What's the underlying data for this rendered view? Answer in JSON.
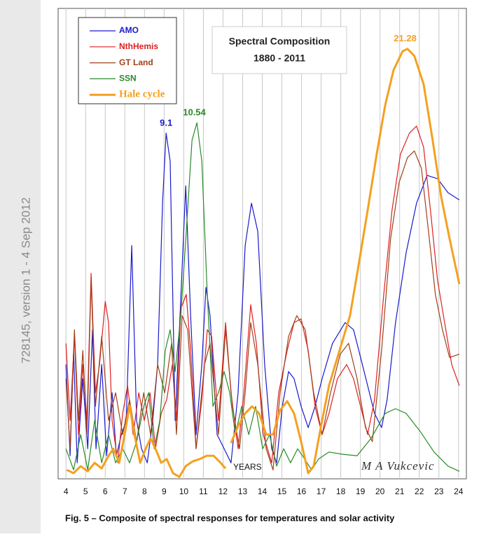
{
  "side_note": "728145, version 1 - 4 Sep 2012",
  "caption": "Fig. 5 – Composite of spectral responses for temperatures and solar activity",
  "chart_data": {
    "type": "line",
    "title": "Spectral Composition",
    "subtitle": "1880 - 2011",
    "annotations": [
      "YEARS",
      "M A Vukcevic"
    ],
    "xlim": [
      3.6,
      24.4
    ],
    "xticks": [
      4,
      5,
      6,
      7,
      8,
      9,
      10,
      11,
      12,
      13,
      14,
      15,
      16,
      17,
      18,
      19,
      20,
      21,
      22,
      23,
      24
    ],
    "ylim": [
      0,
      100
    ],
    "grid": true,
    "legend": "upper left",
    "series": [
      {
        "name": "AMO",
        "color": "#1a1acc",
        "peak": 9.1,
        "x": [
          4.0,
          4.21,
          4.39,
          4.57,
          4.86,
          5.11,
          5.35,
          5.53,
          5.82,
          6.07,
          6.35,
          6.57,
          6.82,
          7.07,
          7.35,
          7.6,
          7.85,
          8.14,
          8.42,
          8.67,
          8.92,
          9.1,
          9.31,
          9.56,
          9.81,
          10.1,
          10.35,
          10.63,
          10.92,
          11.13,
          11.34,
          11.7,
          12.06,
          12.41,
          12.77,
          13.13,
          13.45,
          13.77,
          14.12,
          14.48,
          14.73,
          15.02,
          15.34,
          15.62,
          15.98,
          16.34,
          16.69,
          17.05,
          17.58,
          18.22,
          18.65,
          19.01,
          19.37,
          19.72,
          20.08,
          20.36,
          20.79,
          21.33,
          21.86,
          22.4,
          22.93,
          23.47,
          24.04
        ],
        "values": [
          24.3,
          4.9,
          27.3,
          3.4,
          21.3,
          6.4,
          31.7,
          6.4,
          24.3,
          4.9,
          18.3,
          4.9,
          9.4,
          12.4,
          49.6,
          12.4,
          6.4,
          3.4,
          12.4,
          24.3,
          58.6,
          73.5,
          67.5,
          12.4,
          34.7,
          62.3,
          34.7,
          9.4,
          24.3,
          40.7,
          34.7,
          9.4,
          6.4,
          3.4,
          18.3,
          49.6,
          58.6,
          52.6,
          24.3,
          6.4,
          3.4,
          15.4,
          22.8,
          21.3,
          15.4,
          10.9,
          15.4,
          21.3,
          28.8,
          33.2,
          31.7,
          25.8,
          19.8,
          13.9,
          10.9,
          16.8,
          33.2,
          48.1,
          58.6,
          64.5,
          63.8,
          60.8,
          59.3
        ]
      },
      {
        "name": "NthHemis",
        "color": "#dd2020",
        "x": [
          4.0,
          4.21,
          4.43,
          4.64,
          4.86,
          5.07,
          5.28,
          5.5,
          5.71,
          6.0,
          6.17,
          6.35,
          6.64,
          6.89,
          7.14,
          7.42,
          7.71,
          7.99,
          8.28,
          8.56,
          8.85,
          9.13,
          9.42,
          9.63,
          9.85,
          10.13,
          10.35,
          10.63,
          10.92,
          11.2,
          11.42,
          11.77,
          12.13,
          12.41,
          12.77,
          13.06,
          13.41,
          13.7,
          14.05,
          14.48,
          14.84,
          15.27,
          15.62,
          15.98,
          16.34,
          16.69,
          17.05,
          17.4,
          17.83,
          18.3,
          18.65,
          19.01,
          19.37,
          19.72,
          20.19,
          20.61,
          21.04,
          21.5,
          21.86,
          22.22,
          22.57,
          22.93,
          23.29,
          23.65,
          24.04
        ],
        "values": [
          28.8,
          12.4,
          30.3,
          9.4,
          24.3,
          12.4,
          43.7,
          18.3,
          24.3,
          37.7,
          33.2,
          12.4,
          3.4,
          13.9,
          19.8,
          9.4,
          18.3,
          12.4,
          18.3,
          6.4,
          13.9,
          16.8,
          24.3,
          12.4,
          36.2,
          39.2,
          27.3,
          6.4,
          16.8,
          31.7,
          30.3,
          12.4,
          33.2,
          18.3,
          6.4,
          18.3,
          37.0,
          28.8,
          9.4,
          3.4,
          18.3,
          27.3,
          33.2,
          34.0,
          27.3,
          15.4,
          9.4,
          13.9,
          21.3,
          24.3,
          21.3,
          15.4,
          9.4,
          16.8,
          39.2,
          57.1,
          69.0,
          73.5,
          75.0,
          70.5,
          57.1,
          42.2,
          33.2,
          24.3,
          19.8
        ]
      },
      {
        "name": "GT Land",
        "color": "#a0401a",
        "x": [
          4.0,
          4.21,
          4.43,
          4.64,
          4.86,
          5.07,
          5.28,
          5.5,
          5.82,
          6.17,
          6.53,
          6.89,
          7.24,
          7.6,
          7.96,
          8.31,
          8.67,
          9.03,
          9.38,
          9.63,
          9.92,
          10.2,
          10.63,
          11.06,
          11.34,
          11.77,
          12.13,
          12.48,
          12.84,
          13.13,
          13.41,
          13.77,
          14.2,
          14.55,
          14.91,
          15.34,
          15.76,
          16.19,
          16.62,
          17.05,
          17.48,
          17.97,
          18.4,
          18.83,
          19.26,
          19.61,
          20.08,
          20.54,
          20.97,
          21.4,
          21.75,
          22.11,
          22.47,
          22.82,
          23.18,
          23.54,
          24.04
        ],
        "values": [
          21.3,
          6.4,
          31.7,
          12.4,
          27.3,
          9.4,
          42.2,
          15.4,
          30.3,
          12.4,
          18.3,
          9.4,
          16.8,
          7.9,
          18.3,
          9.4,
          24.3,
          18.3,
          28.8,
          9.4,
          34.7,
          31.7,
          6.4,
          24.3,
          28.8,
          9.4,
          31.7,
          15.4,
          6.4,
          18.3,
          33.2,
          24.3,
          6.4,
          1.9,
          18.3,
          30.3,
          34.7,
          31.7,
          18.3,
          9.4,
          18.3,
          26.5,
          28.8,
          21.3,
          10.9,
          7.9,
          27.3,
          51.1,
          63.0,
          68.3,
          69.7,
          66.0,
          52.6,
          39.2,
          31.7,
          25.8,
          26.5
        ]
      },
      {
        "name": "SSN",
        "color": "#2a8a2a",
        "peak": 10.54,
        "x": [
          4.0,
          4.39,
          4.75,
          5.11,
          5.46,
          5.82,
          6.17,
          6.53,
          6.89,
          7.24,
          7.6,
          7.96,
          8.21,
          8.49,
          8.78,
          9.06,
          9.31,
          9.56,
          9.85,
          10.13,
          10.42,
          10.67,
          10.92,
          11.2,
          11.49,
          11.77,
          12.06,
          12.34,
          12.63,
          12.95,
          13.31,
          13.66,
          14.02,
          14.37,
          14.73,
          15.09,
          15.44,
          15.8,
          16.16,
          16.51,
          16.87,
          17.4,
          18.12,
          18.83,
          19.54,
          20.26,
          20.79,
          21.33,
          22.04,
          22.75,
          23.47,
          24.04
        ],
        "values": [
          6.4,
          1.9,
          9.4,
          1.9,
          12.4,
          3.4,
          9.4,
          3.4,
          6.4,
          3.4,
          7.9,
          15.4,
          18.3,
          6.4,
          12.4,
          27.3,
          31.7,
          22.8,
          34.7,
          52.6,
          72.0,
          75.7,
          67.5,
          39.2,
          15.4,
          18.3,
          22.8,
          18.3,
          9.4,
          15.4,
          9.4,
          15.4,
          6.4,
          9.4,
          2.7,
          6.4,
          3.4,
          6.4,
          4.2,
          1.9,
          4.2,
          5.7,
          5.2,
          4.9,
          8.6,
          13.9,
          14.9,
          13.9,
          10.1,
          5.7,
          2.7,
          1.6
        ]
      },
      {
        "name": "Hale cycle",
        "color": "#f5a020",
        "peak": 21.28,
        "x": [
          4.04,
          4.39,
          4.75,
          5.11,
          5.46,
          5.82,
          6.17,
          6.42,
          6.71,
          6.99,
          7.24,
          7.49,
          7.78,
          8.06,
          8.31,
          8.56,
          8.85,
          9.13,
          9.45,
          9.78,
          10.1,
          10.45,
          10.81,
          11.17,
          11.52,
          11.88,
          12.13,
          null,
          12.41,
          12.77,
          13.13,
          13.48,
          13.84,
          14.2,
          14.55,
          14.91,
          15.27,
          15.62,
          15.98,
          16.34,
          16.62,
          16.98,
          17.4,
          17.94,
          18.47,
          18.9,
          19.37,
          19.83,
          20.26,
          20.69,
          21.15,
          21.4,
          21.75,
          22.22,
          22.68,
          23.11,
          23.54,
          24.04
        ],
        "values": [
          1.9,
          1.2,
          2.7,
          1.6,
          3.4,
          2.2,
          4.9,
          6.4,
          3.4,
          9.4,
          15.6,
          9.4,
          3.4,
          6.4,
          8.6,
          6.4,
          3.4,
          4.2,
          1.2,
          0.4,
          2.7,
          3.7,
          4.2,
          4.9,
          4.9,
          3.4,
          2.2,
          null,
          7.6,
          11.2,
          13.9,
          15.4,
          13.9,
          9.4,
          9.4,
          14.6,
          16.5,
          13.9,
          7.9,
          1.2,
          2.7,
          10.9,
          19.8,
          27.3,
          34.7,
          45.2,
          57.1,
          69.0,
          79.4,
          86.9,
          90.9,
          91.4,
          89.9,
          83.9,
          72.0,
          60.1,
          51.1,
          41.4
        ]
      }
    ]
  }
}
